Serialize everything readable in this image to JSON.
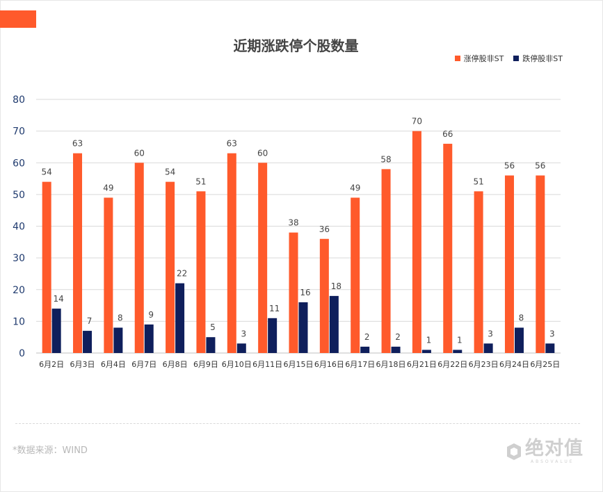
{
  "colors": {
    "accent": "#ff5a2b",
    "limit_up": "#ff5a2b",
    "limit_down": "#0f1f5c",
    "grid": "#d9d9d9",
    "axis_text": "#1f3a6e"
  },
  "chart_data": {
    "type": "bar",
    "title": "近期涨跌停个股数量",
    "categories": [
      "6月2日",
      "6月3日",
      "6月4日",
      "6月7日",
      "6月8日",
      "6月9日",
      "6月10日",
      "6月11日",
      "6月15日",
      "6月16日",
      "6月17日",
      "6月18日",
      "6月21日",
      "6月22日",
      "6月23日",
      "6月24日",
      "6月25日"
    ],
    "series": [
      {
        "name": "涨停股非ST",
        "values": [
          54,
          63,
          49,
          60,
          54,
          51,
          63,
          60,
          38,
          36,
          49,
          58,
          70,
          66,
          51,
          56,
          56
        ]
      },
      {
        "name": "跌停股非ST",
        "values": [
          14,
          7,
          8,
          9,
          22,
          5,
          3,
          11,
          16,
          18,
          2,
          2,
          1,
          1,
          3,
          8,
          3
        ]
      }
    ],
    "ylim": [
      0,
      80
    ],
    "yticks": [
      0,
      10,
      20,
      30,
      40,
      50,
      60,
      70,
      80
    ],
    "grid": true,
    "legend_position": "top-right",
    "data_labels": true
  },
  "footer": {
    "source": "*数据来源：WIND",
    "brand_name": "绝对值",
    "brand_sub": "ABSOVALUE"
  }
}
